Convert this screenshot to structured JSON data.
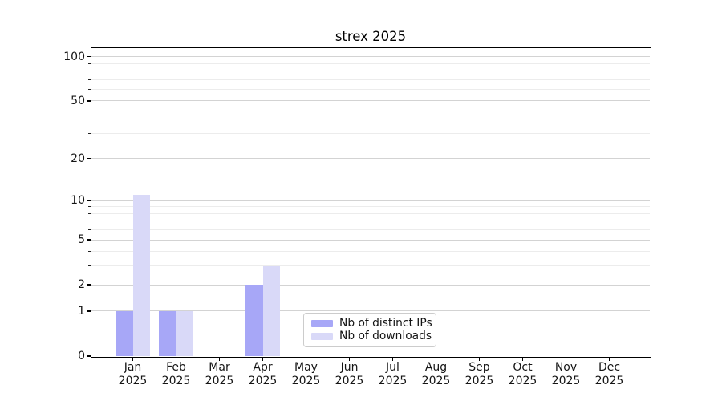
{
  "chart_data": {
    "type": "bar",
    "title": "strex 2025",
    "categories": [
      "Jan",
      "Feb",
      "Mar",
      "Apr",
      "May",
      "Jun",
      "Jul",
      "Aug",
      "Sep",
      "Oct",
      "Nov",
      "Dec"
    ],
    "x_tick_second_line": "2025",
    "series": [
      {
        "name": "Nb of distinct IPs",
        "color": "#a7a7f7",
        "values": [
          1,
          1,
          0,
          2,
          0,
          0,
          0,
          0,
          0,
          0,
          0,
          0
        ]
      },
      {
        "name": "Nb of downloads",
        "color": "#d9d9f8",
        "values": [
          11,
          1,
          0,
          3,
          0,
          0,
          0,
          0,
          0,
          0,
          0,
          0
        ]
      }
    ],
    "yscale": "log(1+v)",
    "ylim": [
      0,
      114
    ],
    "yticks": [
      0,
      1,
      2,
      5,
      10,
      20,
      50,
      100
    ],
    "yticks_minor": [
      3,
      4,
      6,
      7,
      8,
      9,
      30,
      40,
      60,
      70,
      80,
      90
    ],
    "grid": "on",
    "legend_position": "inside-lower-center",
    "colors": {
      "major_grid": "#d3d3d3",
      "minor_grid": "#ececec",
      "spine": "#000000"
    }
  }
}
